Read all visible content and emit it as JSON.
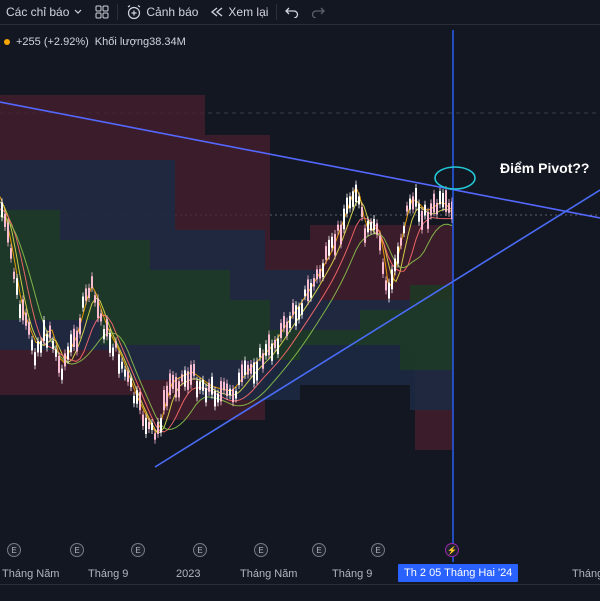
{
  "toolbar": {
    "indicators_label": "Các chỉ báo",
    "alerts_label": "Cảnh báo",
    "replay_label": "Xem lại"
  },
  "legend": {
    "change": "+255 (+2.92%)",
    "volume_label": "Khối lượng",
    "volume_value": "38.34M"
  },
  "annotation": {
    "text": "Điểm Pivot??"
  },
  "x_axis": {
    "labels": [
      "Tháng Năm",
      "Tháng 9",
      "2023",
      "Tháng Năm",
      "Tháng 9",
      "Tháng"
    ],
    "crosshair_label": "Th 2 05 Tháng Hai '24"
  },
  "events": {
    "earnings_letter": "E",
    "flash_symbol": "⚡"
  },
  "colors": {
    "background": "#131722",
    "up_candle": "#f8bbd0",
    "trend_line": "#5468ff",
    "crosshair": "#2962ff",
    "cloud_red": "#4a1f2e",
    "cloud_blue": "#1c2a44",
    "cloud_green": "#1d3a24"
  }
}
